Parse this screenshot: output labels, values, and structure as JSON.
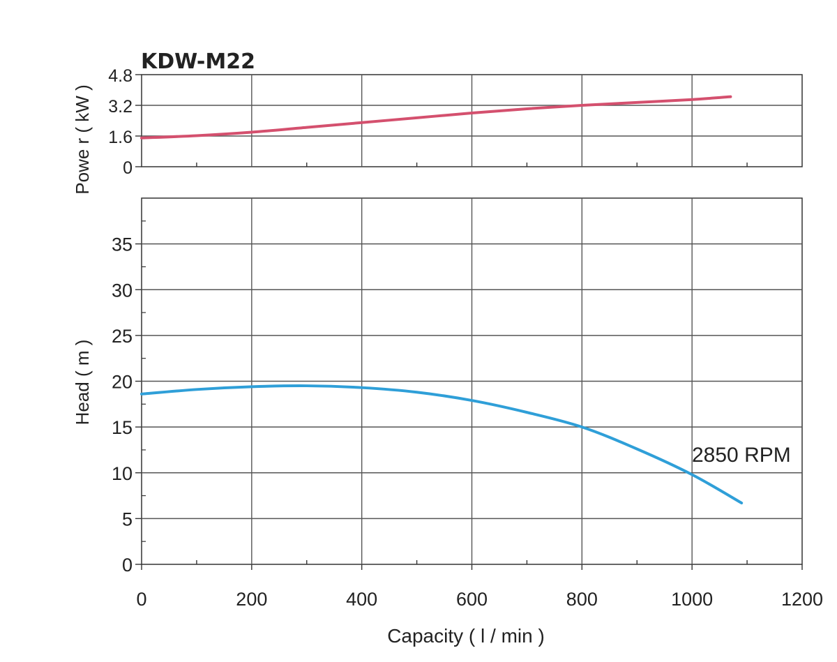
{
  "chart_data": [
    {
      "type": "line",
      "title": "KDW-M22",
      "ylabel": "Powe r ( kW )",
      "xlim": [
        0,
        1200
      ],
      "ylim": [
        0,
        4.8
      ],
      "y_ticks": [
        "0",
        "1.6",
        "3.2",
        "4.8"
      ],
      "grid": true,
      "series": [
        {
          "color": "#d4506e",
          "x": [
            0,
            100,
            200,
            300,
            400,
            500,
            600,
            700,
            800,
            900,
            1000,
            1070
          ],
          "values": [
            1.5,
            1.62,
            1.8,
            2.05,
            2.3,
            2.55,
            2.8,
            3.02,
            3.2,
            3.35,
            3.5,
            3.65
          ]
        }
      ]
    },
    {
      "type": "line",
      "xlabel": "Capacity ( l / min )",
      "ylabel": "Head ( m )",
      "xlim": [
        0,
        1200
      ],
      "ylim": [
        0,
        40
      ],
      "x_ticks": [
        "0",
        "200",
        "400",
        "600",
        "800",
        "1000",
        "1200"
      ],
      "y_ticks": [
        "0",
        "5",
        "10",
        "15",
        "20",
        "25",
        "30",
        "35"
      ],
      "grid": true,
      "series": [
        {
          "name": "2850 RPM",
          "color": "#2f9fd8",
          "x": [
            0,
            100,
            200,
            300,
            400,
            500,
            600,
            700,
            800,
            900,
            1000,
            1090
          ],
          "values": [
            18.6,
            19.1,
            19.4,
            19.5,
            19.3,
            18.8,
            17.9,
            16.6,
            15.0,
            12.6,
            9.8,
            6.7
          ]
        }
      ]
    }
  ]
}
